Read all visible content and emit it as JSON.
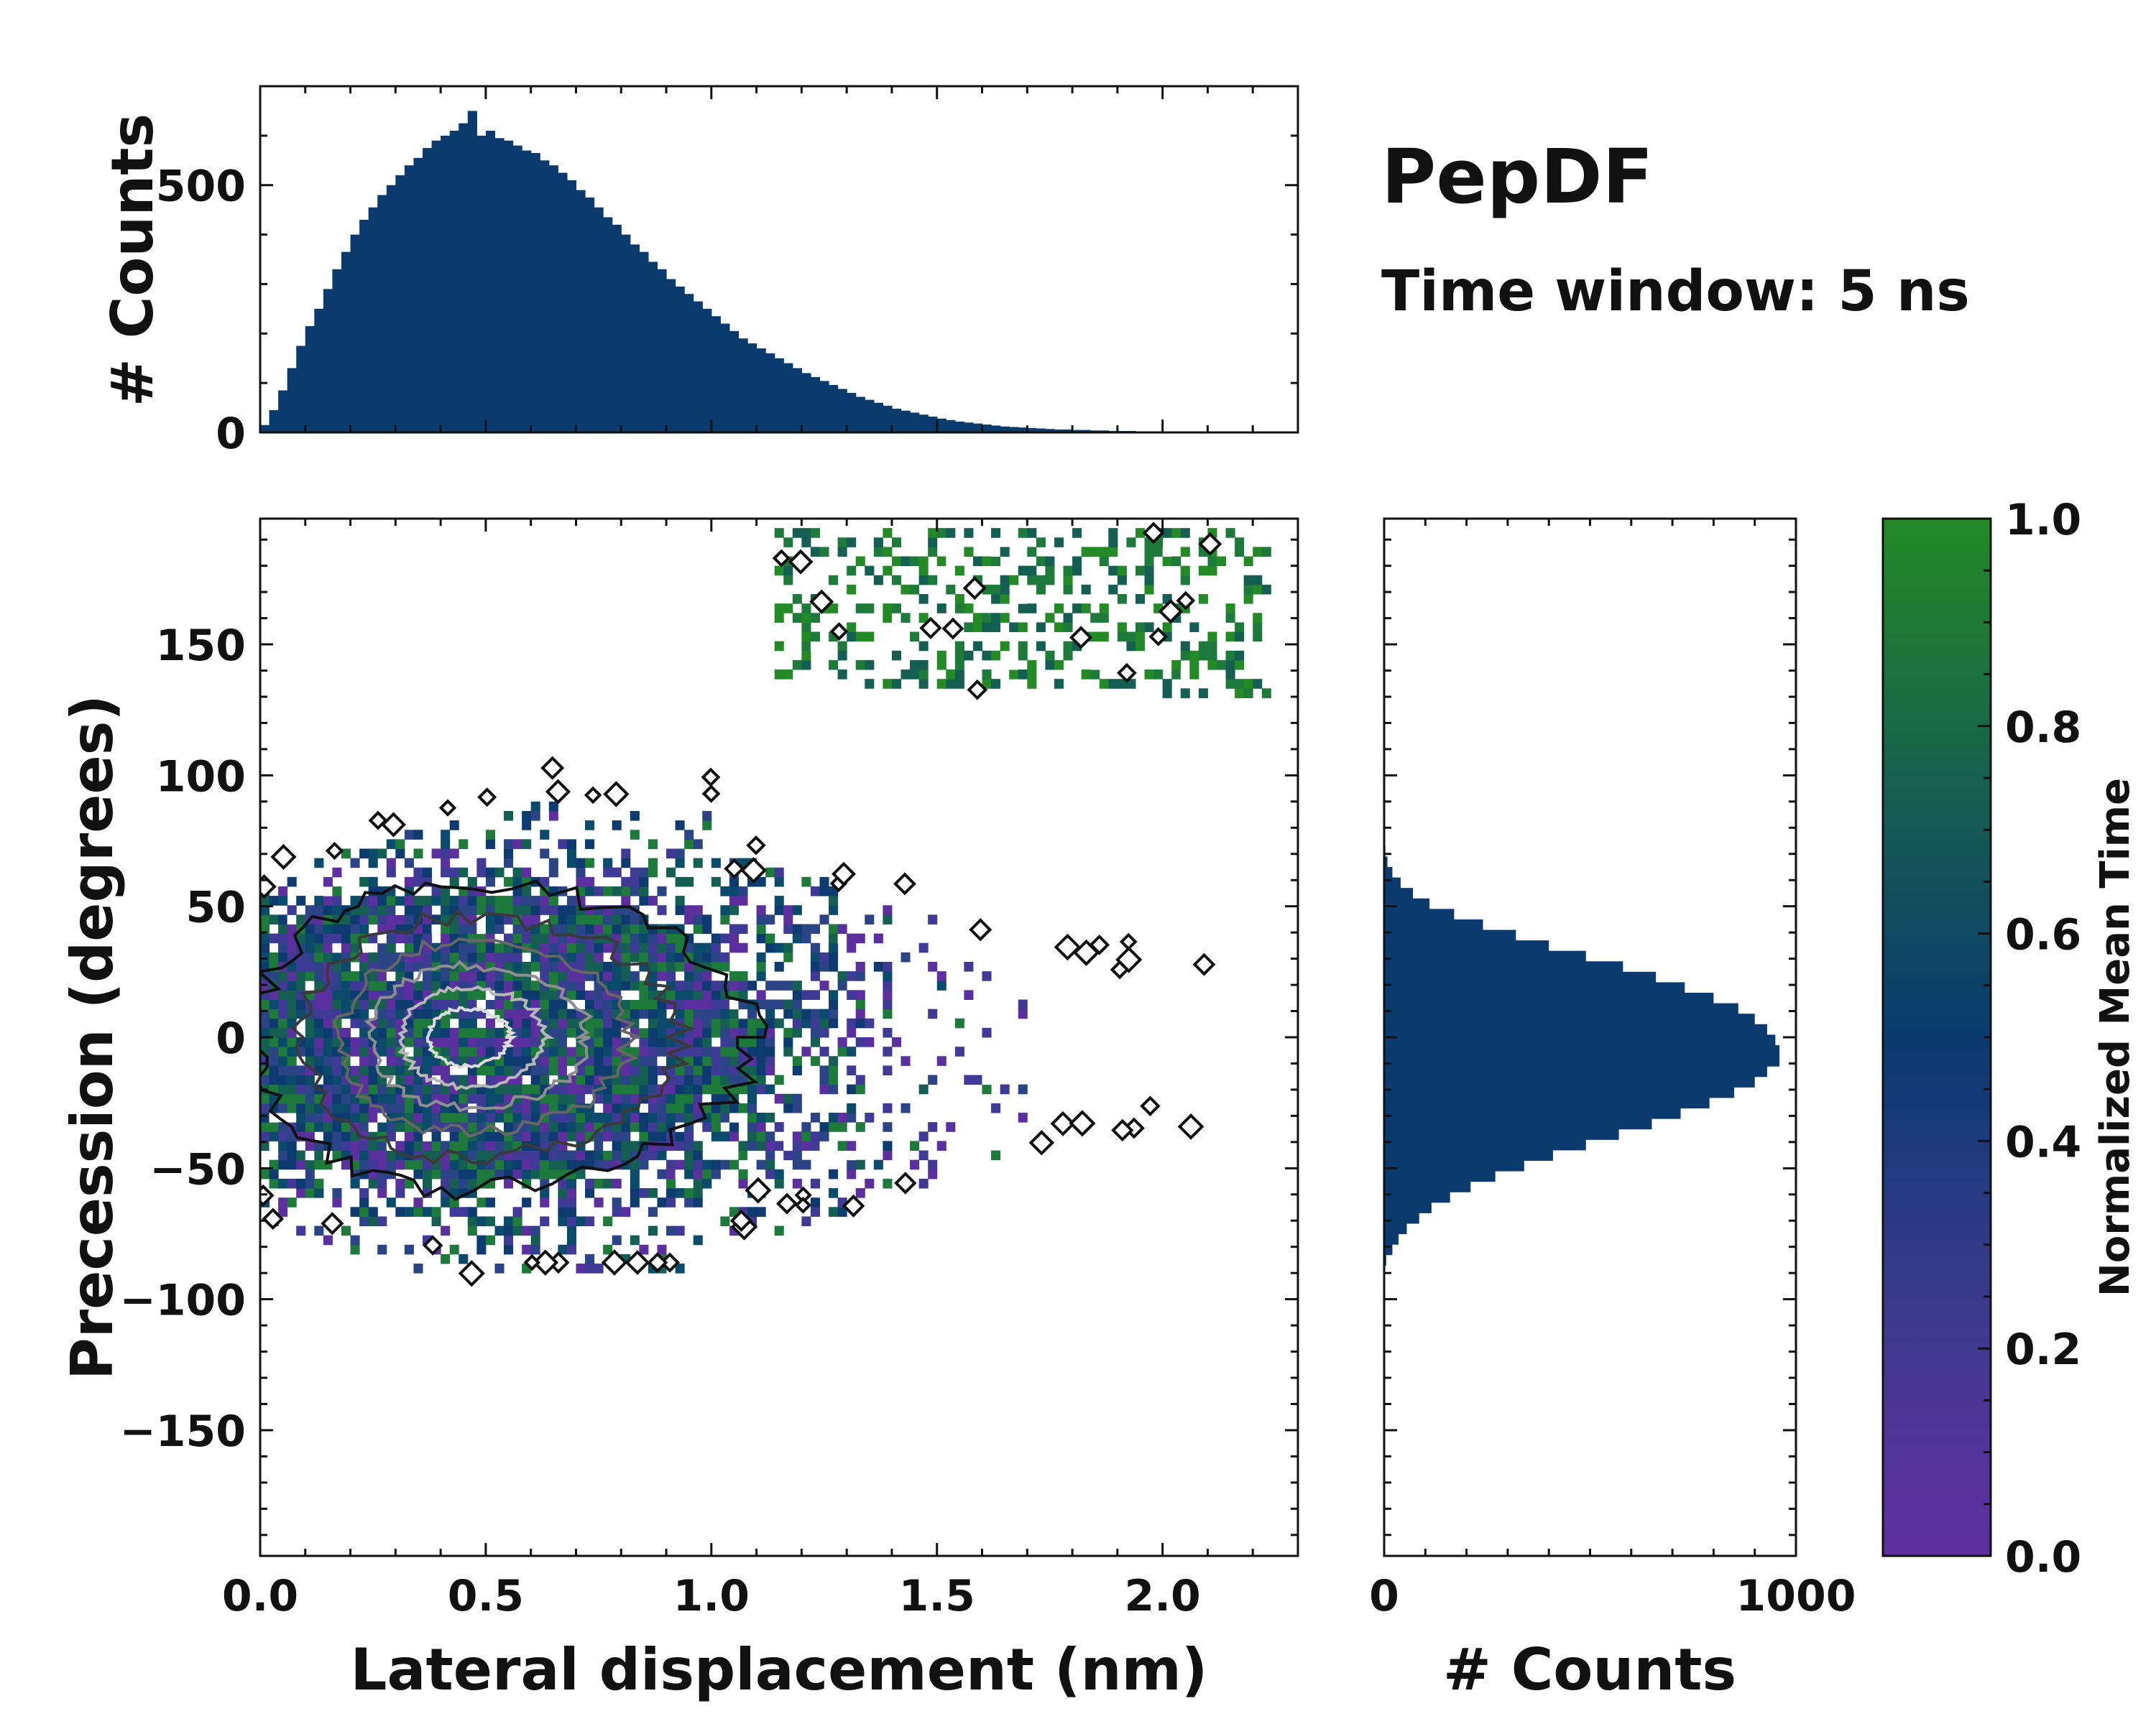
{
  "title": "PepDF",
  "subtitle": "Time window: 5 ns",
  "chart_data": [
    {
      "id": "top-histogram",
      "type": "bar",
      "title": "",
      "xlabel": "",
      "ylabel": "# Counts",
      "xlim": [
        0,
        2.3
      ],
      "ylim": [
        0,
        700
      ],
      "yticks": [
        0,
        500
      ],
      "bin_width": 0.02,
      "color": "#0a3a6e",
      "x": [
        0.01,
        0.03,
        0.05,
        0.07,
        0.09,
        0.11,
        0.13,
        0.15,
        0.17,
        0.19,
        0.21,
        0.23,
        0.25,
        0.27,
        0.29,
        0.31,
        0.33,
        0.35,
        0.37,
        0.39,
        0.41,
        0.43,
        0.45,
        0.47,
        0.49,
        0.51,
        0.53,
        0.55,
        0.57,
        0.59,
        0.61,
        0.63,
        0.65,
        0.67,
        0.69,
        0.71,
        0.73,
        0.75,
        0.77,
        0.79,
        0.81,
        0.83,
        0.85,
        0.87,
        0.89,
        0.91,
        0.93,
        0.95,
        0.97,
        0.99,
        1.01,
        1.03,
        1.05,
        1.07,
        1.09,
        1.11,
        1.13,
        1.15,
        1.17,
        1.19,
        1.21,
        1.23,
        1.25,
        1.27,
        1.29,
        1.31,
        1.33,
        1.35,
        1.37,
        1.39,
        1.41,
        1.43,
        1.45,
        1.47,
        1.49,
        1.51,
        1.53,
        1.55,
        1.57,
        1.59,
        1.61,
        1.63,
        1.65,
        1.67,
        1.69,
        1.71,
        1.73,
        1.75,
        1.77,
        1.79,
        1.81,
        1.83,
        1.85,
        1.87,
        1.89,
        1.91,
        1.93,
        1.95,
        1.97,
        1.99,
        2.01,
        2.03,
        2.05,
        2.07,
        2.09,
        2.11,
        2.13,
        2.15,
        2.17,
        2.19,
        2.21,
        2.23,
        2.25,
        2.27,
        2.29
      ],
      "values": [
        15,
        45,
        85,
        130,
        175,
        215,
        250,
        290,
        330,
        365,
        400,
        430,
        455,
        480,
        500,
        520,
        540,
        555,
        575,
        590,
        600,
        610,
        625,
        650,
        600,
        610,
        595,
        590,
        580,
        570,
        565,
        550,
        540,
        525,
        510,
        490,
        475,
        455,
        435,
        420,
        400,
        380,
        365,
        345,
        330,
        310,
        295,
        280,
        265,
        250,
        235,
        220,
        205,
        190,
        180,
        170,
        160,
        150,
        140,
        130,
        120,
        112,
        104,
        96,
        88,
        80,
        72,
        66,
        60,
        54,
        48,
        44,
        40,
        36,
        32,
        28,
        25,
        22,
        20,
        18,
        16,
        14,
        12,
        11,
        10,
        9,
        8,
        7,
        6,
        6,
        5,
        5,
        4,
        4,
        3,
        3,
        3,
        2,
        2,
        2,
        2,
        2,
        1,
        1,
        1,
        1,
        1,
        1,
        1,
        1,
        1,
        0,
        0,
        0,
        0
      ]
    },
    {
      "id": "main-2d-histogram",
      "type": "heatmap",
      "title": "",
      "xlabel": "Lateral displacement (nm)",
      "ylabel": "Precession (degrees)",
      "xlim": [
        0,
        2.3
      ],
      "ylim": [
        -198,
        198
      ],
      "xticks": [
        0.0,
        0.5,
        1.0,
        1.5,
        2.0
      ],
      "xtick_labels": [
        "0.0",
        "0.5",
        "1.0",
        "1.5",
        "2.0"
      ],
      "yticks": [
        -150,
        -100,
        -50,
        0,
        50,
        100,
        150
      ],
      "ytick_labels": [
        "−150",
        "−100",
        "−50",
        "0",
        "50",
        "100",
        "150"
      ],
      "description_main_cluster": {
        "center_x": 0.45,
        "center_y": 0,
        "spread_x": 0.4,
        "spread_y": 30,
        "x_extent": [
          0.0,
          2.2
        ],
        "y_extent": [
          -90,
          105
        ]
      },
      "description_upper_cluster": {
        "x_range": [
          1.15,
          2.25
        ],
        "y_range": [
          130,
          195
        ]
      },
      "contour_colors": [
        "#111111",
        "#3a3a3a",
        "#666666",
        "#8e8e8e",
        "#b7b7b7",
        "#dcdcdc"
      ]
    },
    {
      "id": "right-histogram",
      "type": "bar",
      "orientation": "horizontal",
      "title": "",
      "xlabel": "# Counts",
      "ylabel": "",
      "xlim": [
        0,
        1000
      ],
      "ylim": [
        -198,
        198
      ],
      "xticks": [
        0,
        1000
      ],
      "xtick_labels": [
        "0",
        "1000"
      ],
      "bin_width": 2,
      "color": "#0a3a6e",
      "y": [
        -83,
        -79,
        -75,
        -71,
        -67,
        -63,
        -59,
        -55,
        -51,
        -47,
        -43,
        -39,
        -35,
        -31,
        -27,
        -23,
        -19,
        -15,
        -11,
        -7,
        -3,
        1,
        5,
        9,
        13,
        17,
        21,
        25,
        29,
        33,
        37,
        41,
        45,
        49,
        53,
        57,
        61,
        65,
        69
      ],
      "values": [
        5,
        20,
        35,
        55,
        85,
        115,
        160,
        210,
        270,
        340,
        410,
        490,
        570,
        650,
        720,
        790,
        850,
        900,
        930,
        960,
        950,
        930,
        900,
        860,
        800,
        730,
        660,
        580,
        490,
        400,
        320,
        240,
        170,
        110,
        70,
        40,
        20,
        8,
        3
      ]
    },
    {
      "id": "colorbar",
      "type": "colorbar",
      "label": "Normalized Mean Time",
      "range": [
        0.0,
        1.0
      ],
      "ticks": [
        0.0,
        0.2,
        0.4,
        0.6,
        0.8,
        1.0
      ],
      "tick_labels": [
        "0.0",
        "0.2",
        "0.4",
        "0.6",
        "0.8",
        "1.0"
      ],
      "colormap_stops": [
        {
          "value": 0.0,
          "color": "#6030a0"
        },
        {
          "value": 0.25,
          "color": "#3a3a8c"
        },
        {
          "value": 0.5,
          "color": "#0a3a6e"
        },
        {
          "value": 0.75,
          "color": "#18604e"
        },
        {
          "value": 1.0,
          "color": "#238a26"
        }
      ]
    }
  ]
}
